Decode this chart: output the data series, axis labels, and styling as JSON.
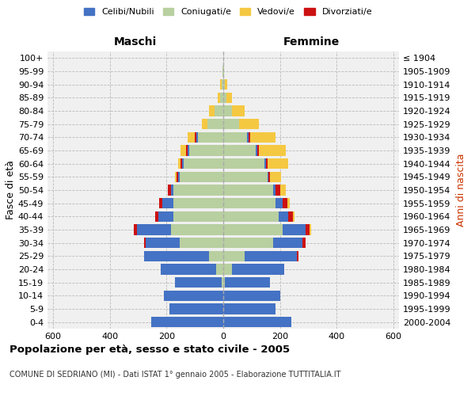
{
  "age_groups": [
    "0-4",
    "5-9",
    "10-14",
    "15-19",
    "20-24",
    "25-29",
    "30-34",
    "35-39",
    "40-44",
    "45-49",
    "50-54",
    "55-59",
    "60-64",
    "65-69",
    "70-74",
    "75-79",
    "80-84",
    "85-89",
    "90-94",
    "95-99",
    "100+"
  ],
  "birth_years": [
    "2000-2004",
    "1995-1999",
    "1990-1994",
    "1985-1989",
    "1980-1984",
    "1975-1979",
    "1970-1974",
    "1965-1969",
    "1960-1964",
    "1955-1959",
    "1950-1954",
    "1945-1949",
    "1940-1944",
    "1935-1939",
    "1930-1934",
    "1925-1929",
    "1920-1924",
    "1915-1919",
    "1910-1914",
    "1905-1909",
    "≤ 1904"
  ],
  "male": {
    "celibi": [
      255,
      190,
      210,
      165,
      195,
      230,
      120,
      120,
      55,
      40,
      10,
      5,
      5,
      5,
      5,
      0,
      0,
      0,
      0,
      0,
      0
    ],
    "coniugati": [
      0,
      0,
      0,
      5,
      25,
      50,
      155,
      185,
      175,
      175,
      175,
      155,
      140,
      120,
      90,
      55,
      30,
      10,
      5,
      2,
      0
    ],
    "vedovi": [
      0,
      0,
      0,
      0,
      0,
      0,
      0,
      0,
      0,
      0,
      0,
      5,
      10,
      20,
      25,
      20,
      20,
      10,
      5,
      2,
      0
    ],
    "divorziati": [
      0,
      0,
      0,
      0,
      0,
      0,
      5,
      10,
      10,
      10,
      10,
      5,
      5,
      5,
      5,
      0,
      0,
      0,
      0,
      0,
      0
    ]
  },
  "female": {
    "nubili": [
      240,
      185,
      200,
      160,
      185,
      185,
      105,
      80,
      35,
      25,
      10,
      5,
      5,
      5,
      5,
      0,
      0,
      0,
      0,
      0,
      0
    ],
    "coniugate": [
      0,
      0,
      0,
      5,
      30,
      75,
      175,
      210,
      195,
      185,
      175,
      155,
      145,
      115,
      85,
      55,
      30,
      10,
      5,
      2,
      0
    ],
    "vedove": [
      0,
      0,
      0,
      0,
      0,
      0,
      0,
      5,
      5,
      10,
      20,
      40,
      75,
      95,
      90,
      70,
      45,
      20,
      8,
      2,
      0
    ],
    "divorziate": [
      0,
      0,
      0,
      0,
      0,
      5,
      10,
      15,
      15,
      15,
      15,
      5,
      5,
      5,
      5,
      0,
      0,
      0,
      0,
      0,
      0
    ]
  },
  "color_celibi": "#4472c4",
  "color_coniugati": "#b8cfa0",
  "color_vedovi": "#f5c842",
  "color_divorziati": "#cc1111",
  "xlim": 620,
  "title": "Popolazione per età, sesso e stato civile - 2005",
  "subtitle": "COMUNE DI SEDRIANO (MI) - Dati ISTAT 1° gennaio 2005 - Elaborazione TUTTITALIA.IT",
  "ylabel_left": "Fasce di età",
  "ylabel_right": "Anni di nascita",
  "xlabel_maschi": "Maschi",
  "xlabel_femmine": "Femmine"
}
